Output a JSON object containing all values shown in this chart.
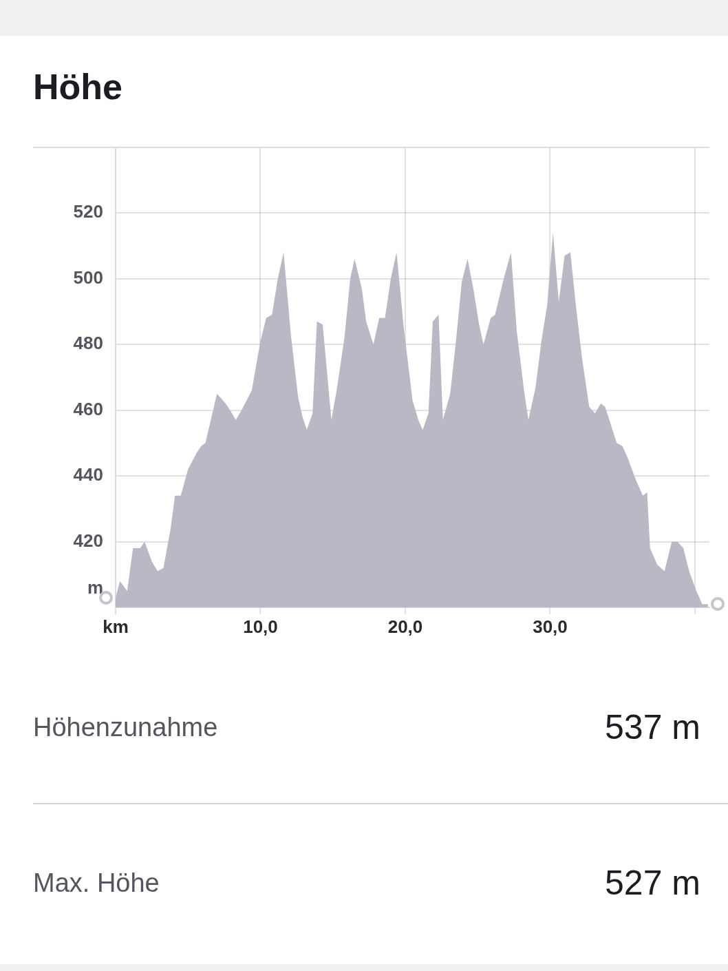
{
  "chart_data": {
    "type": "area",
    "title": "Höhe",
    "ylabel": "m",
    "color": "#b9b9c6",
    "grid": true,
    "xlim": [
      0,
      41
    ],
    "ylim": [
      400,
      540
    ],
    "xticks": [
      {
        "value": 0,
        "label": "km"
      },
      {
        "value": 10,
        "label": "10,0"
      },
      {
        "value": 20,
        "label": "20,0"
      },
      {
        "value": 30,
        "label": "30,0"
      },
      {
        "value": 40,
        "label": null
      }
    ],
    "yticks": [
      420,
      440,
      460,
      480,
      500,
      520
    ],
    "x": [
      0,
      0.3,
      0.8,
      1.2,
      1.7,
      2,
      2.5,
      2.9,
      3.3,
      3.8,
      4.1,
      4.5,
      5,
      5.6,
      5.9,
      6.2,
      7,
      7.6,
      7.9,
      8.3,
      8.7,
      9.4,
      10,
      10.4,
      10.8,
      11.2,
      11.6,
      12.1,
      12.6,
      12.9,
      13.2,
      13.6,
      13.9,
      14.3,
      14.9,
      15.3,
      15.8,
      16.2,
      16.5,
      17,
      17.3,
      17.8,
      18.2,
      18.6,
      19,
      19.4,
      19.9,
      20.5,
      20.9,
      21.2,
      21.6,
      21.9,
      22.3,
      22.6,
      23.1,
      23.5,
      23.9,
      24.3,
      24.7,
      25.1,
      25.4,
      25.9,
      26.2,
      26.8,
      27.3,
      27.7,
      28.2,
      28.5,
      29,
      29.4,
      29.8,
      30.2,
      30.6,
      31,
      31.4,
      31.8,
      32.2,
      32.7,
      33.1,
      33.5,
      33.8,
      34.6,
      35,
      35.4,
      35.9,
      36.4,
      36.7,
      36.9,
      37.4,
      37.9,
      38.4,
      38.8,
      39.2,
      39.6,
      40.1,
      40.5,
      40.9
    ],
    "values": [
      403,
      408,
      405,
      418,
      418,
      420,
      414,
      411,
      412,
      424,
      434,
      434,
      442,
      447,
      449,
      450,
      465,
      462,
      460,
      457,
      460,
      466,
      481,
      488,
      489,
      500,
      508,
      483,
      464,
      458,
      454,
      459,
      487,
      486,
      457,
      467,
      482,
      500,
      506,
      497,
      487,
      480,
      488,
      488,
      500,
      508,
      485,
      463,
      457,
      454,
      459,
      487,
      489,
      457,
      465,
      481,
      499,
      506,
      497,
      486,
      480,
      488,
      489,
      500,
      508,
      484,
      466,
      457,
      467,
      481,
      492,
      514,
      493,
      507,
      508,
      491,
      476,
      461,
      459,
      462,
      461,
      450,
      449,
      445,
      439,
      434,
      435,
      418,
      413,
      411,
      420,
      420,
      418,
      411,
      405,
      401,
      401
    ],
    "annotations": [
      "Höhenzunahme",
      "537 m",
      "Max. Höhe",
      "527 m"
    ]
  }
}
